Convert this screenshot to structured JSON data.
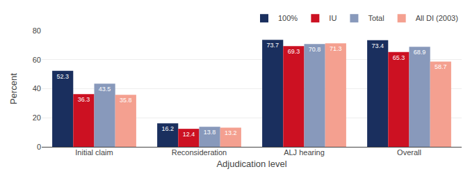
{
  "chart_data": {
    "type": "bar",
    "categories": [
      "Initial claim",
      "Reconsideration",
      "ALJ hearing",
      "Overall"
    ],
    "series": [
      {
        "name": "100%",
        "color": "#1a2f5e",
        "values": [
          52.3,
          16.2,
          73.7,
          73.4
        ]
      },
      {
        "name": "IU",
        "color": "#cc1122",
        "values": [
          36.3,
          12.4,
          69.3,
          65.3
        ]
      },
      {
        "name": "Total",
        "color": "#8899bb",
        "values": [
          43.5,
          13.8,
          70.8,
          68.9
        ]
      },
      {
        "name": "All DI (2003)",
        "color": "#f4a090",
        "values": [
          35.8,
          13.2,
          71.3,
          58.7
        ]
      }
    ],
    "xlabel": "Adjudication level",
    "ylabel": "Percent",
    "ylim": [
      0,
      80
    ],
    "yticks": [
      0,
      20,
      40,
      60,
      80
    ],
    "grid": true,
    "legend": "top",
    "data_labels": true
  }
}
